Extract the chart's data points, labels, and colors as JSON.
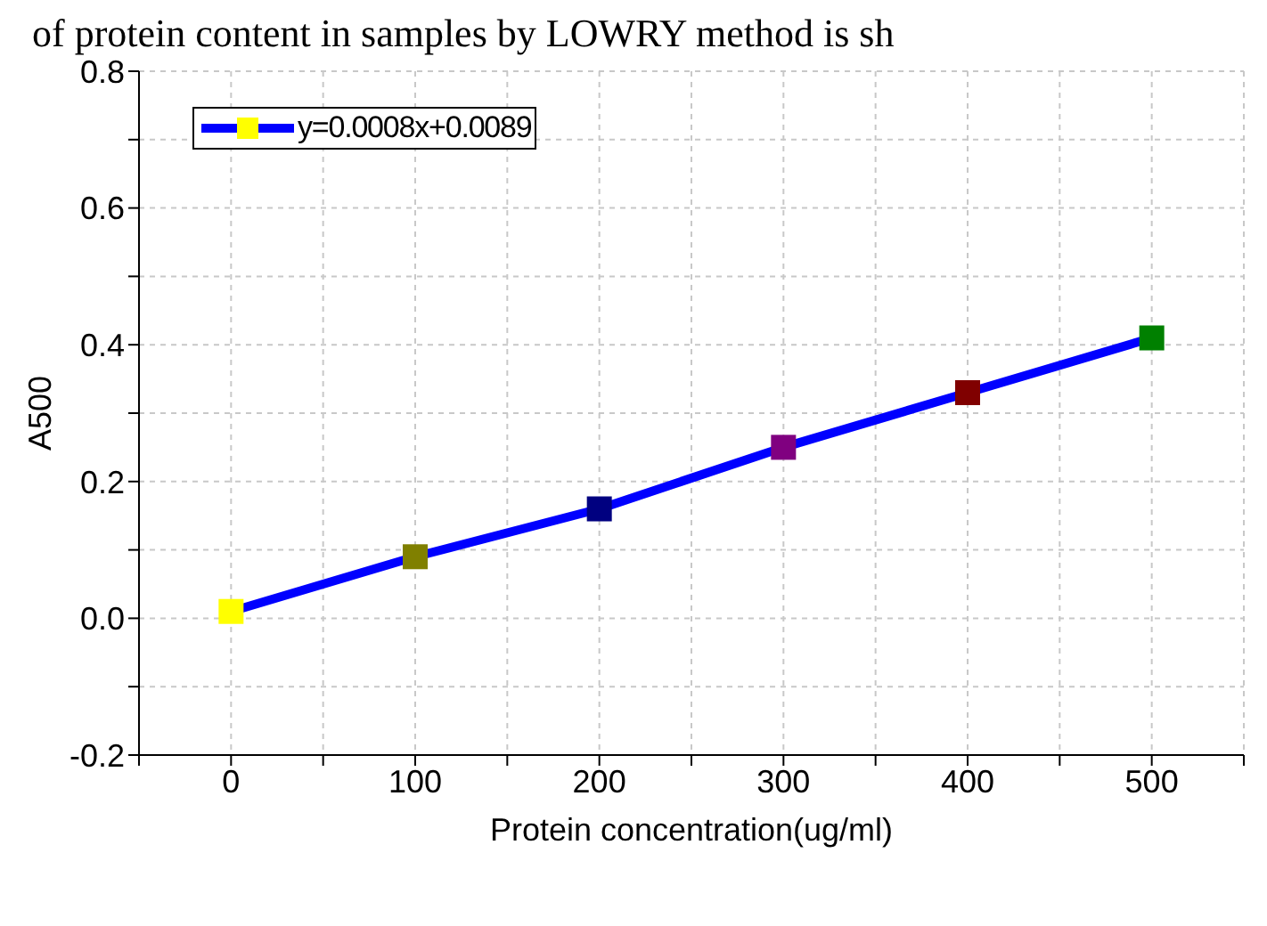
{
  "chart_data": {
    "type": "line",
    "annotations": [
      "of protein content in samples by LOWRY method is sh"
    ],
    "xlabel": "Protein concentration(ug/ml)",
    "ylabel": "A500",
    "x": [
      0,
      100,
      200,
      300,
      400,
      500
    ],
    "series": [
      {
        "name": "y=0.0008x+0.0089",
        "color": "#0000ff",
        "colors": [
          "#ffff00",
          "#808000",
          "#000080",
          "#800080",
          "#800000",
          "#008000"
        ],
        "values": [
          0.01,
          0.09,
          0.16,
          0.25,
          0.33,
          0.41
        ]
      }
    ],
    "xlim": [
      -50,
      550
    ],
    "xticks": [
      {
        "value": -50,
        "label": null
      },
      0,
      {
        "value": 50,
        "label": null
      },
      100,
      {
        "value": 150,
        "label": null
      },
      200,
      {
        "value": 250,
        "label": null
      },
      300,
      {
        "value": 350,
        "label": null
      },
      400,
      {
        "value": 450,
        "label": null
      },
      500,
      {
        "value": 550,
        "label": null
      }
    ],
    "ylim": [
      -0.2,
      0.8
    ],
    "yticks": [
      -0.2,
      {
        "value": -0.1,
        "label": null
      },
      {
        "value": 0,
        "label": "0.0"
      },
      {
        "value": 0.1,
        "label": null
      },
      0.2,
      {
        "value": 0.3,
        "label": null
      },
      0.4,
      {
        "value": 0.5,
        "label": null
      },
      0.6,
      {
        "value": 0.7,
        "label": null
      },
      0.8
    ],
    "grid": true,
    "legend": "top left",
    "marker": "square",
    "line_style": "solid"
  }
}
